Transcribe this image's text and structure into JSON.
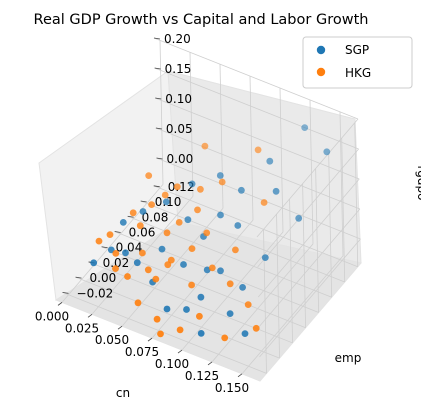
{
  "chart_data": {
    "type": "scatter3d",
    "title": "Real GDP Growth vs Capital and Labor Growth",
    "xlabel": "cn",
    "ylabel": "emp",
    "zlabel": "rgdpo",
    "xlim": [
      -0.005,
      0.165
    ],
    "ylim": [
      -0.03,
      0.125
    ],
    "zlim": [
      -0.04,
      0.2
    ],
    "xticks": [
      "0.000",
      "0.025",
      "0.050",
      "0.075",
      "0.100",
      "0.125",
      "0.150"
    ],
    "yticks": [
      "−0.02",
      "0.00",
      "0.02",
      "0.04",
      "0.06",
      "0.08",
      "0.10",
      "0.12"
    ],
    "zticks": [
      "0.00",
      "0.05",
      "0.10",
      "0.15",
      "0.20"
    ],
    "grid": true,
    "legend_position": "top-right",
    "colors": {
      "SGP": "#1f77b4",
      "HKG": "#ff7f0e"
    },
    "series": [
      {
        "name": "SGP",
        "points": [
          [
            0.124,
            0.118,
            0.162
          ],
          [
            0.15,
            0.104,
            0.16
          ],
          [
            0.112,
            0.086,
            0.137
          ],
          [
            0.128,
            0.066,
            0.125
          ],
          [
            0.1,
            0.064,
            0.107
          ],
          [
            0.142,
            0.074,
            0.081
          ],
          [
            0.078,
            0.072,
            0.104
          ],
          [
            0.062,
            0.058,
            0.095
          ],
          [
            0.091,
            0.048,
            0.079
          ],
          [
            0.134,
            0.037,
            0.056
          ],
          [
            0.107,
            0.045,
            0.078
          ],
          [
            0.083,
            0.036,
            0.052
          ],
          [
            0.068,
            0.04,
            0.063
          ],
          [
            0.049,
            0.042,
            0.075
          ],
          [
            0.036,
            0.03,
            0.064
          ],
          [
            0.104,
            0.023,
            0.028
          ],
          [
            0.124,
            0.02,
            0.02
          ],
          [
            0.094,
            0.021,
            0.024
          ],
          [
            0.077,
            0.016,
            0.026
          ],
          [
            0.058,
            0.018,
            0.034
          ],
          [
            0.026,
            0.018,
            0.053
          ],
          [
            0.034,
            0.006,
            0.024
          ],
          [
            0.046,
            0.002,
            0.022
          ],
          [
            0.122,
            0.004,
            -0.005
          ],
          [
            0.137,
            -0.001,
            -0.02
          ],
          [
            0.091,
            -0.006,
            -0.01
          ],
          [
            0.058,
            0.003,
            -0.002
          ],
          [
            0.021,
            0.008,
            0.016
          ],
          [
            0.078,
            -0.012,
            -0.012
          ],
          [
            0.108,
            -0.015,
            -0.025
          ],
          [
            0.1,
            0.0,
            0.01
          ],
          [
            0.015,
            -0.008,
            0.01
          ]
        ]
      },
      {
        "name": "HKG",
        "points": [
          [
            0.099,
            0.092,
            0.138
          ],
          [
            0.06,
            0.082,
            0.126
          ],
          [
            0.12,
            0.062,
            0.105
          ],
          [
            0.084,
            0.064,
            0.108
          ],
          [
            0.07,
            0.056,
            0.095
          ],
          [
            0.054,
            0.05,
            0.094
          ],
          [
            0.028,
            0.054,
            0.087
          ],
          [
            0.046,
            0.046,
            0.079
          ],
          [
            0.074,
            0.044,
            0.079
          ],
          [
            0.113,
            0.03,
            0.061
          ],
          [
            0.088,
            0.032,
            0.067
          ],
          [
            0.064,
            0.034,
            0.063
          ],
          [
            0.04,
            0.036,
            0.071
          ],
          [
            0.058,
            0.026,
            0.051
          ],
          [
            0.038,
            0.022,
            0.052
          ],
          [
            0.03,
            0.026,
            0.062
          ],
          [
            0.081,
            0.022,
            0.048
          ],
          [
            0.1,
            0.018,
            0.036
          ],
          [
            0.069,
            0.012,
            0.032
          ],
          [
            0.046,
            0.01,
            0.028
          ],
          [
            0.054,
            0.004,
            0.014
          ],
          [
            0.027,
            0.004,
            0.02
          ],
          [
            0.012,
            0.006,
            0.026
          ],
          [
            0.031,
            -0.004,
            0.008
          ],
          [
            0.042,
            -0.006,
            0.006
          ],
          [
            0.063,
            -0.001,
            0.012
          ],
          [
            0.089,
            0.006,
            0.014
          ],
          [
            0.117,
            0.014,
            0.028
          ],
          [
            0.134,
            0.01,
            0.012
          ],
          [
            0.147,
            -0.002,
            -0.002
          ],
          [
            0.126,
            -0.012,
            -0.022
          ],
          [
            0.104,
            -0.01,
            -0.006
          ],
          [
            0.092,
            -0.018,
            -0.028
          ],
          [
            0.074,
            -0.02,
            -0.022
          ],
          [
            0.056,
            -0.016,
            -0.014
          ],
          [
            0.08,
            -0.026,
            -0.034
          ],
          [
            0.066,
            0.012,
            0.022
          ],
          [
            0.018,
            0.012,
            0.034
          ]
        ]
      }
    ]
  }
}
